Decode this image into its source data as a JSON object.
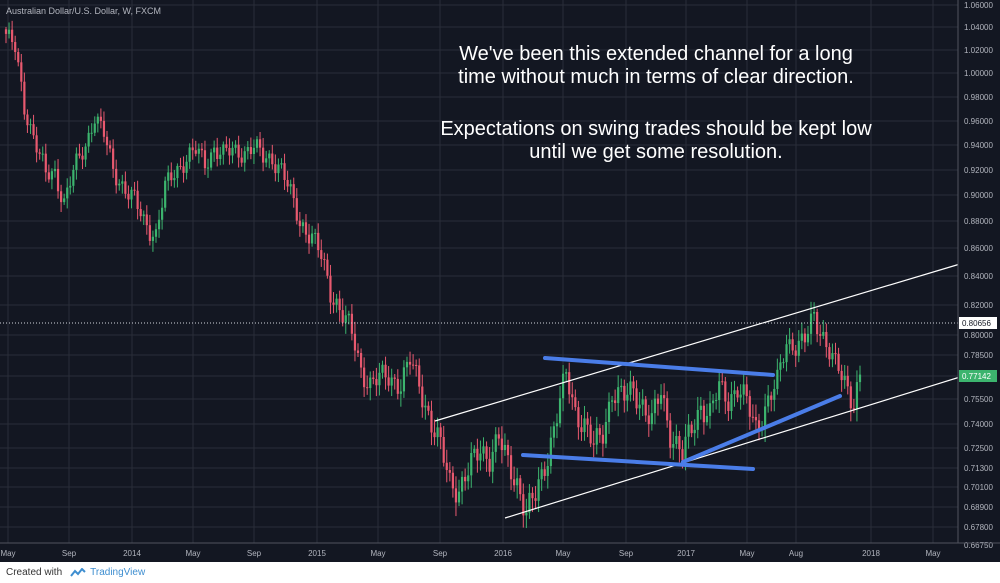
{
  "chart_data": {
    "type": "candlestick",
    "title": "Australian Dollar/U.S. Dollar, W, FXCM",
    "x_ticks": [
      "May",
      "Sep",
      "2014",
      "May",
      "Sep",
      "2015",
      "May",
      "Sep",
      "2016",
      "May",
      "Sep",
      "2017",
      "May",
      "Aug",
      "2018",
      "May"
    ],
    "y_ticks": [
      "1.06000",
      "1.04000",
      "1.02000",
      "1.00000",
      "0.98000",
      "0.96000",
      "0.94000",
      "0.92000",
      "0.90000",
      "0.88000",
      "0.86000",
      "0.84000",
      "0.82000",
      "0.80000",
      "0.78500",
      "0.77000",
      "0.75500",
      "0.74000",
      "0.72500",
      "0.71300",
      "0.70100",
      "0.68900",
      "0.67800",
      "0.66750"
    ],
    "ylim": [
      0.6675,
      1.06
    ],
    "last_price": "0.77142",
    "reference_price": "0.80656",
    "colors": {
      "up": "#3cb46e",
      "down": "#e8596f",
      "trend": "#4a7de8",
      "channel": "#ffffff"
    },
    "annotation_lines": [
      "We've been this extended channel for a long",
      "time without much in terms of clear direction.",
      "",
      "Expectations on swing trades should be kept low",
      "until we get some resolution."
    ],
    "weekly_closes_anchor": [
      [
        0,
        1.034
      ],
      [
        3,
        1.02
      ],
      [
        6,
        0.972
      ],
      [
        9,
        0.948
      ],
      [
        13,
        0.915
      ],
      [
        16,
        0.918
      ],
      [
        19,
        0.895
      ],
      [
        22,
        0.918
      ],
      [
        26,
        0.94
      ],
      [
        29,
        0.965
      ],
      [
        32,
        0.948
      ],
      [
        35,
        0.92
      ],
      [
        39,
        0.905
      ],
      [
        42,
        0.895
      ],
      [
        45,
        0.88
      ],
      [
        49,
        0.87
      ],
      [
        52,
        0.905
      ],
      [
        55,
        0.918
      ],
      [
        59,
        0.93
      ],
      [
        62,
        0.935
      ],
      [
        65,
        0.925
      ],
      [
        68,
        0.938
      ],
      [
        71,
        0.932
      ],
      [
        74,
        0.935
      ],
      [
        78,
        0.935
      ],
      [
        81,
        0.938
      ],
      [
        84,
        0.93
      ],
      [
        87,
        0.93
      ],
      [
        90,
        0.92
      ],
      [
        93,
        0.9
      ],
      [
        96,
        0.88
      ],
      [
        100,
        0.868
      ],
      [
        103,
        0.853
      ],
      [
        106,
        0.83
      ],
      [
        109,
        0.818
      ],
      [
        113,
        0.8
      ],
      [
        116,
        0.775
      ],
      [
        119,
        0.765
      ],
      [
        122,
        0.768
      ],
      [
        125,
        0.77
      ],
      [
        129,
        0.765
      ],
      [
        132,
        0.78
      ],
      [
        135,
        0.765
      ],
      [
        139,
        0.74
      ],
      [
        142,
        0.725
      ],
      [
        145,
        0.705
      ],
      [
        148,
        0.7
      ],
      [
        151,
        0.71
      ],
      [
        155,
        0.725
      ],
      [
        158,
        0.72
      ],
      [
        161,
        0.73
      ],
      [
        164,
        0.715
      ],
      [
        167,
        0.705
      ],
      [
        170,
        0.685
      ],
      [
        173,
        0.695
      ],
      [
        177,
        0.722
      ],
      [
        180,
        0.745
      ],
      [
        183,
        0.77
      ],
      [
        186,
        0.748
      ],
      [
        189,
        0.74
      ],
      [
        192,
        0.725
      ],
      [
        195,
        0.735
      ],
      [
        198,
        0.76
      ],
      [
        202,
        0.755
      ],
      [
        205,
        0.762
      ],
      [
        208,
        0.752
      ],
      [
        211,
        0.74
      ],
      [
        214,
        0.76
      ],
      [
        217,
        0.735
      ],
      [
        221,
        0.72
      ],
      [
        224,
        0.737
      ],
      [
        227,
        0.752
      ],
      [
        230,
        0.745
      ],
      [
        233,
        0.762
      ],
      [
        236,
        0.756
      ],
      [
        239,
        0.762
      ],
      [
        242,
        0.752
      ],
      [
        245,
        0.738
      ],
      [
        248,
        0.75
      ],
      [
        252,
        0.765
      ],
      [
        255,
        0.795
      ],
      [
        258,
        0.793
      ],
      [
        261,
        0.795
      ],
      [
        264,
        0.812
      ],
      [
        267,
        0.8
      ],
      [
        271,
        0.777
      ],
      [
        274,
        0.765
      ],
      [
        277,
        0.755
      ],
      [
        279,
        0.771
      ]
    ]
  },
  "footer": {
    "created_with": "Created with",
    "brand": "TradingView"
  }
}
